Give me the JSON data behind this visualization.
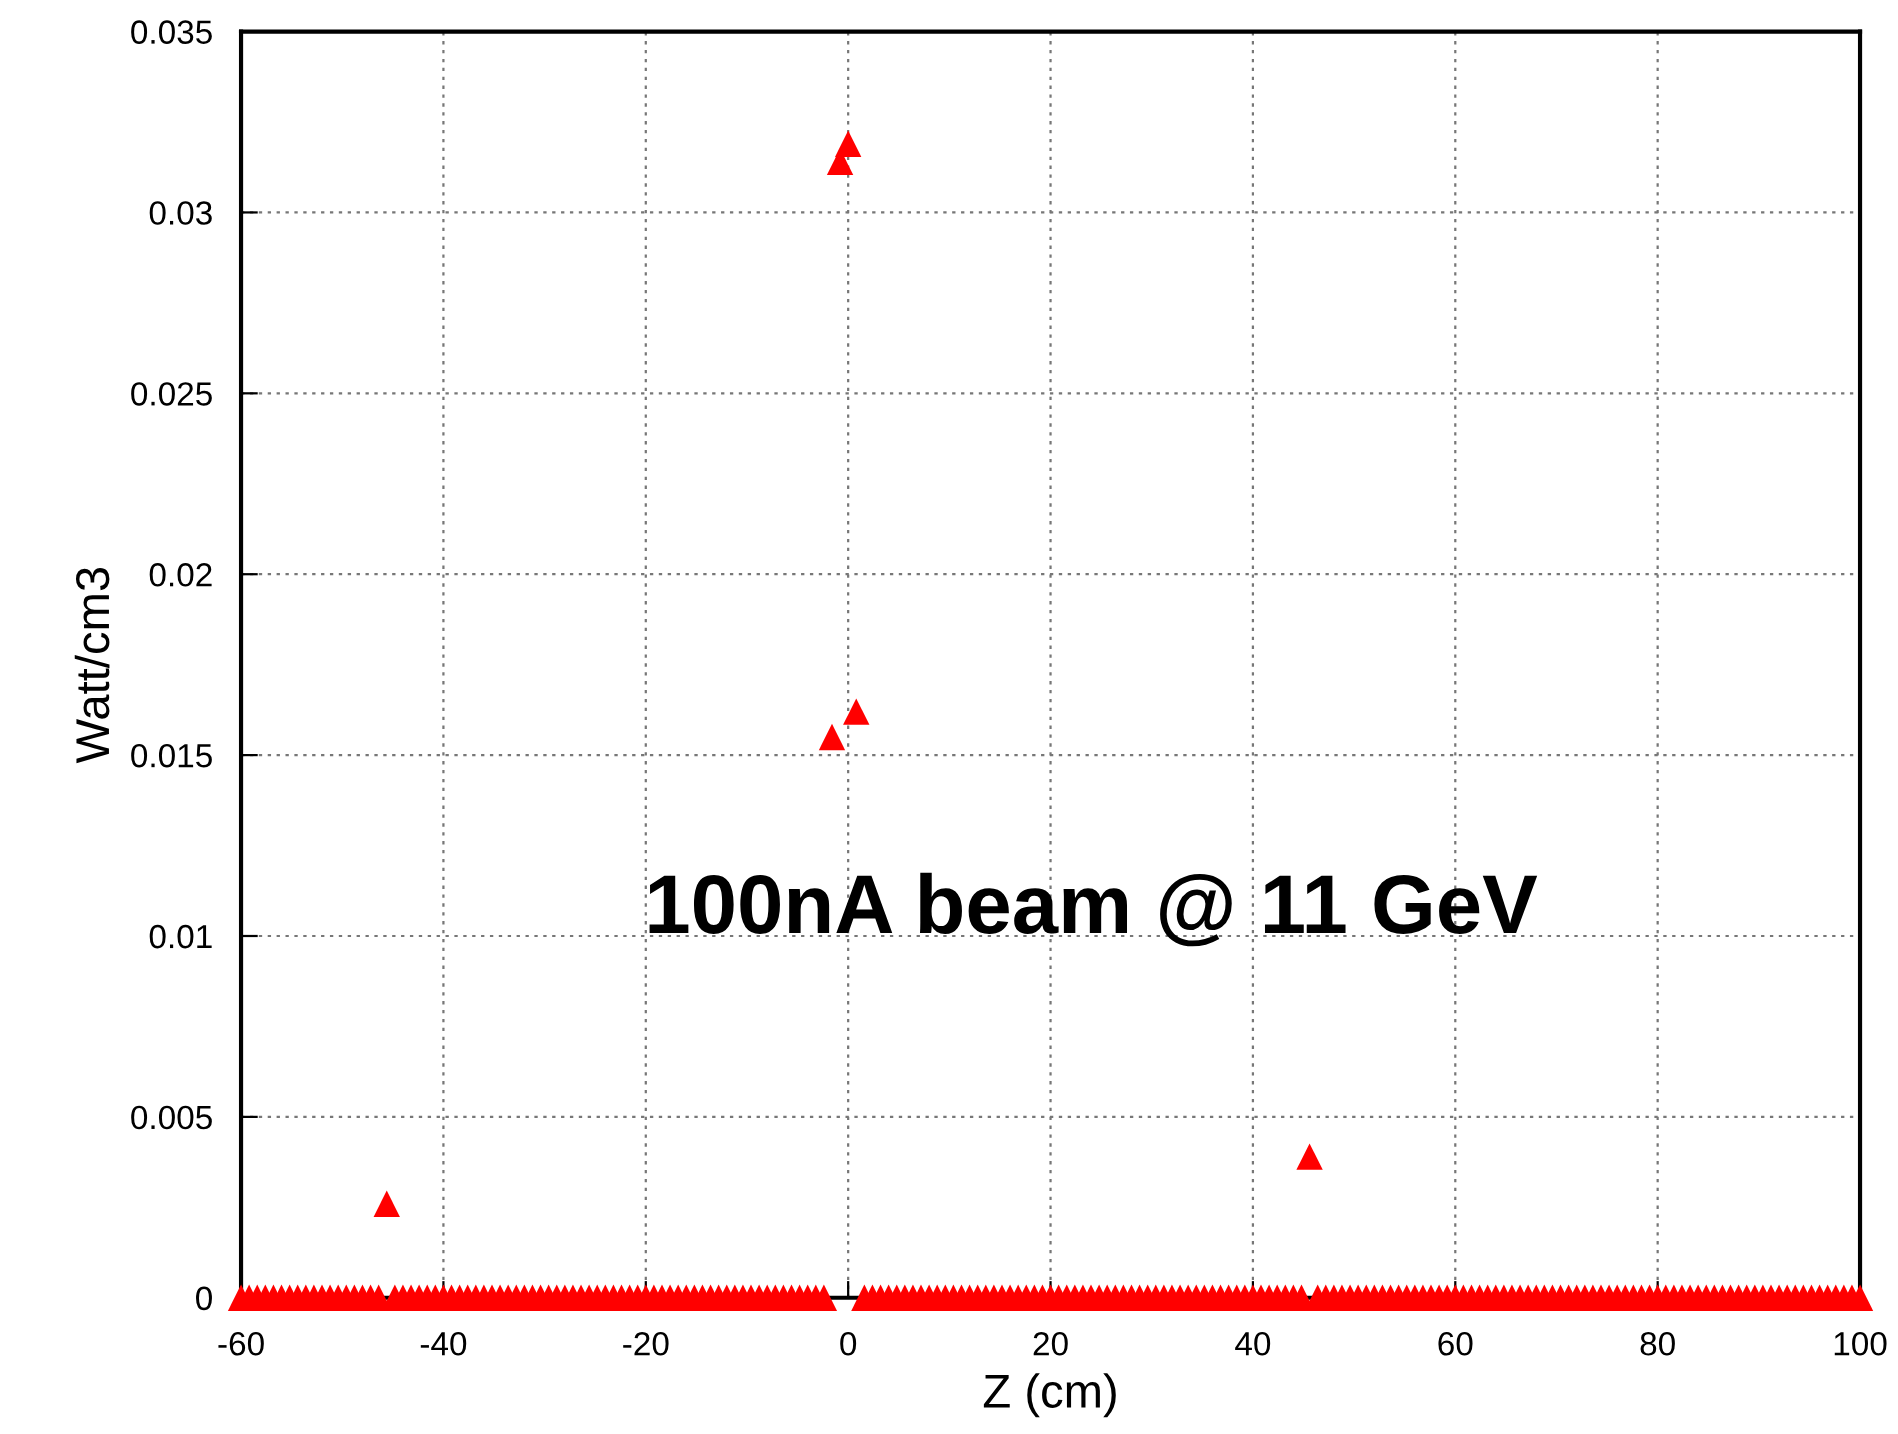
{
  "chart_data": {
    "type": "scatter",
    "xlabel": "Z (cm)",
    "ylabel": "Watt/cm3",
    "annotations": [
      "100nA beam @ 11 GeV"
    ],
    "xlim": [
      -60,
      100
    ],
    "xticks": [
      -60,
      -40,
      -20,
      0,
      20,
      40,
      60,
      80,
      100
    ],
    "ylim": [
      0,
      0.035
    ],
    "yticks": [
      0,
      0.005,
      0.01,
      0.015,
      0.02,
      0.025,
      0.03,
      0.035
    ],
    "grid": true,
    "marker": "triangle",
    "series": [
      {
        "color": "#ff0000",
        "x": [
          -60,
          -59.2,
          -58.4,
          -57.6,
          -56.8,
          -56,
          -55.2,
          -54.4,
          -53.6,
          -52.8,
          -52,
          -51.2,
          -50.4,
          -49.6,
          -48.8,
          -48,
          -47.2,
          -46.4,
          -45.6,
          -44.8,
          -44,
          -43.2,
          -42.4,
          -41.6,
          -40.8,
          -40,
          -39.2,
          -38.4,
          -37.6,
          -36.8,
          -36,
          -35.2,
          -34.4,
          -33.6,
          -32.8,
          -32,
          -31.2,
          -30.4,
          -29.6,
          -28.8,
          -28,
          -27.2,
          -26.4,
          -25.6,
          -24.8,
          -24,
          -23.2,
          -22.4,
          -21.6,
          -20.8,
          -20,
          -19.2,
          -18.4,
          -17.6,
          -16.8,
          -16,
          -15.2,
          -14.4,
          -13.6,
          -12.8,
          -12,
          -11.2,
          -10.4,
          -9.6,
          -8.8,
          -8,
          -7.2,
          -6.4,
          -5.6,
          -4.8,
          -4,
          -3.2,
          -2.4,
          -1.6,
          -0.8,
          0,
          0.8,
          1.6,
          2.4,
          3.2,
          4,
          4.8,
          5.6,
          6.4,
          7.2,
          8,
          8.8,
          9.6,
          10.4,
          11.2,
          12,
          12.8,
          13.6,
          14.4,
          15.2,
          16,
          16.8,
          17.6,
          18.4,
          19.2,
          20,
          20.8,
          21.6,
          22.4,
          23.2,
          24,
          24.8,
          25.6,
          26.4,
          27.2,
          28,
          28.8,
          29.6,
          30.4,
          31.2,
          32,
          32.8,
          33.6,
          34.4,
          35.2,
          36,
          36.8,
          37.6,
          38.4,
          39.2,
          40,
          40.8,
          41.6,
          42.4,
          43.2,
          44,
          44.8,
          45.6,
          46.4,
          47.2,
          48,
          48.8,
          49.6,
          50.4,
          51.2,
          52,
          52.8,
          53.6,
          54.4,
          55.2,
          56,
          56.8,
          57.6,
          58.4,
          59.2,
          60,
          60.8,
          61.6,
          62.4,
          63.2,
          64,
          64.8,
          65.6,
          66.4,
          67.2,
          68,
          68.8,
          69.6,
          70.4,
          71.2,
          72,
          72.8,
          73.6,
          74.4,
          75.2,
          76,
          76.8,
          77.6,
          78.4,
          79.2,
          80,
          80.8,
          81.6,
          82.4,
          83.2,
          84,
          84.8,
          85.6,
          86.4,
          87.2,
          88,
          88.8,
          89.6,
          90.4,
          91.2,
          92,
          92.8,
          93.6,
          94.4,
          95.2,
          96,
          96.8,
          97.6,
          98.4,
          99.2,
          100
        ],
        "values": [
          0,
          0,
          0,
          0,
          0,
          0,
          0,
          0,
          0,
          0,
          0,
          0,
          0,
          0,
          0,
          0,
          0,
          0,
          0.0026,
          0,
          0,
          0,
          0,
          0,
          0,
          0,
          0,
          0,
          0,
          0,
          0,
          0,
          0,
          0,
          0,
          0,
          0,
          0,
          0,
          0,
          0,
          0,
          0,
          0,
          0,
          0,
          0,
          0,
          0,
          0,
          0,
          0,
          0,
          0,
          0,
          0,
          0,
          0,
          0,
          0,
          0,
          0,
          0,
          0,
          0,
          0,
          0,
          0,
          0,
          0,
          0,
          0,
          0,
          0.0155,
          0.0314,
          0.0319,
          0.0162,
          0,
          0,
          0,
          0,
          0,
          0,
          0,
          0,
          0,
          0,
          0,
          0,
          0,
          0,
          0,
          0,
          0,
          0,
          0,
          0,
          0,
          0,
          0,
          0,
          0,
          0,
          0,
          0,
          0,
          0,
          0,
          0,
          0,
          0,
          0,
          0,
          0,
          0,
          0,
          0,
          0,
          0,
          0,
          0,
          0,
          0,
          0,
          0,
          0,
          0,
          0,
          0,
          0,
          0,
          0,
          0.0039,
          0,
          0,
          0,
          0,
          0,
          0,
          0,
          0,
          0,
          0,
          0,
          0,
          0,
          0,
          0,
          0,
          0,
          0,
          0,
          0,
          0,
          0,
          0,
          0,
          0,
          0,
          0,
          0,
          0,
          0,
          0,
          0,
          0,
          0,
          0,
          0,
          0,
          0,
          0,
          0,
          0,
          0,
          0,
          0,
          0,
          0,
          0,
          0,
          0,
          0,
          0,
          0,
          0,
          0,
          0,
          0,
          0,
          0,
          0,
          0,
          0,
          0,
          0,
          0,
          0,
          0,
          0,
          0
        ]
      }
    ]
  }
}
